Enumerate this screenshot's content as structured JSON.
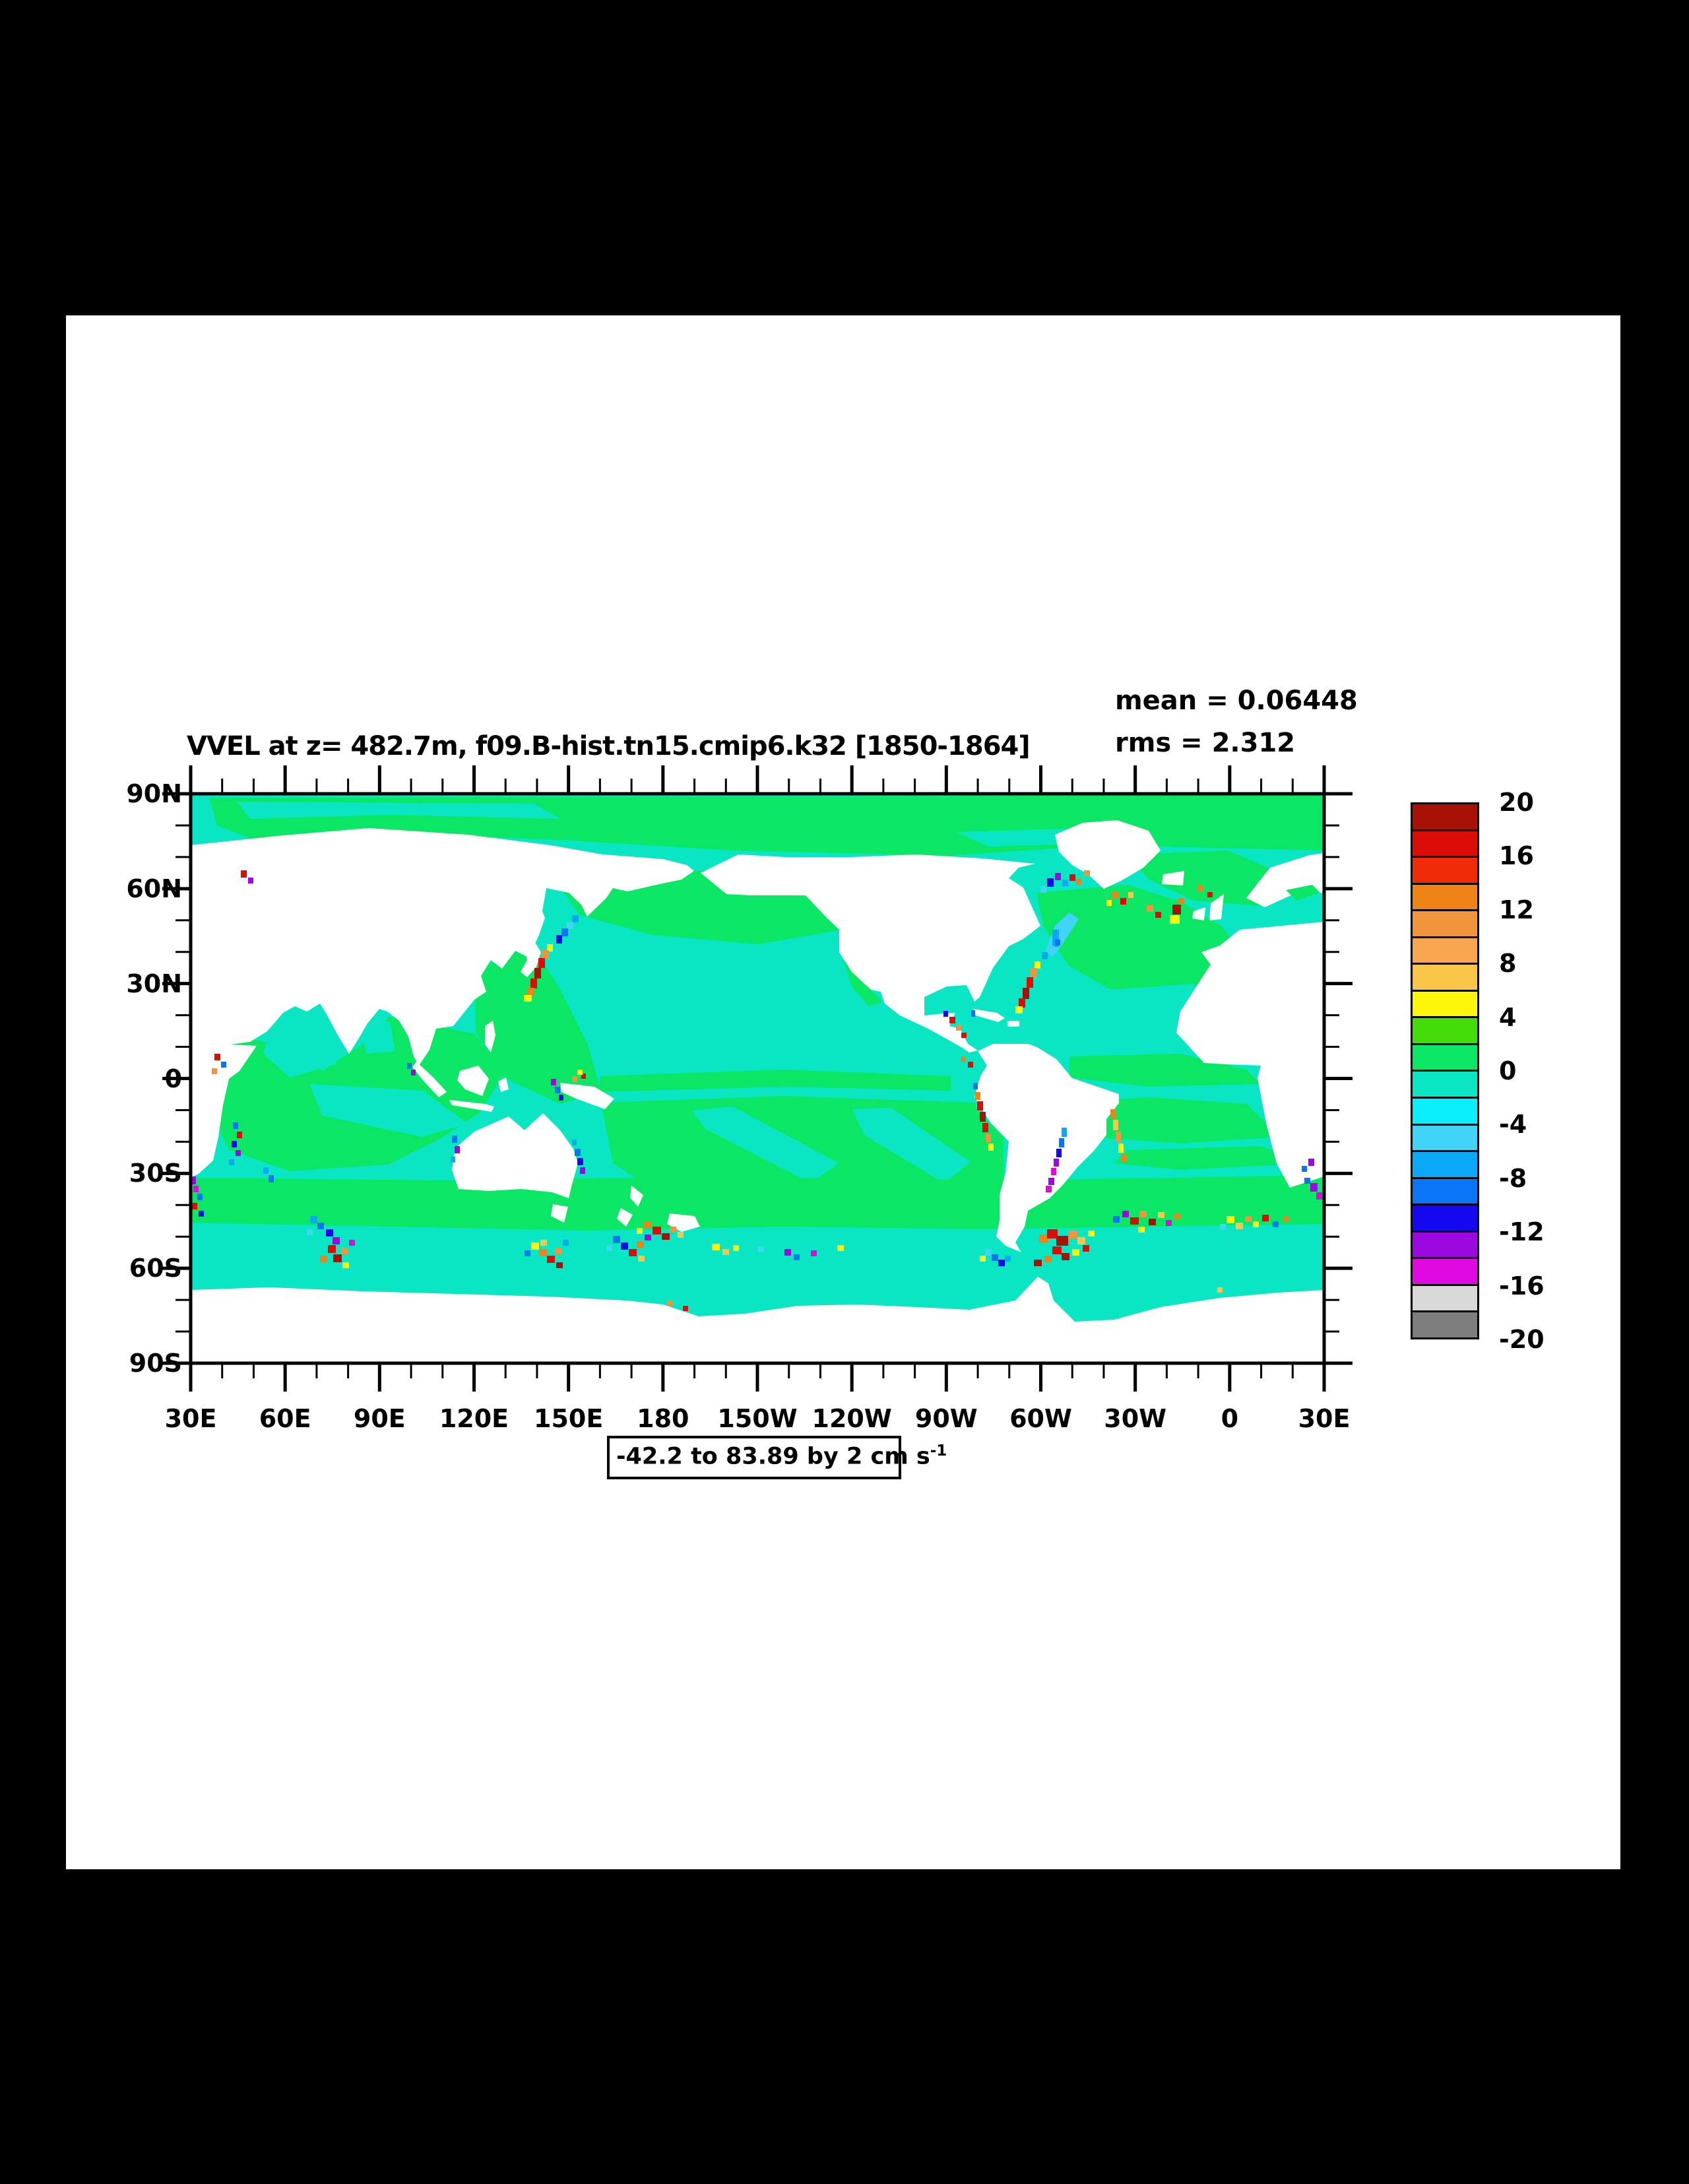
{
  "header": {
    "title": "VVEL at z= 482.7m, f09.B-hist.tn15.cmip6.k32 [1850-1864]",
    "mean_label": "mean = 0.06448",
    "rms_label": "rms = 2.312"
  },
  "caption": {
    "text": "-42.2 to 83.89 by 2 cm s",
    "superscript": "-1"
  },
  "axes": {
    "x_tick_labels": [
      "30E",
      "60E",
      "90E",
      "120E",
      "150E",
      "180",
      "150W",
      "120W",
      "90W",
      "60W",
      "30W",
      "0",
      "30E"
    ],
    "y_tick_labels": [
      "90N",
      "60N",
      "30N",
      "0",
      "30S",
      "60S",
      "90S"
    ]
  },
  "colorbar": {
    "tick_labels": [
      "20",
      "16",
      "12",
      "8",
      "4",
      "0",
      "-4",
      "-8",
      "-12",
      "-16",
      "-20"
    ],
    "cell_colors_top_to_bottom": [
      "#a81206",
      "#db0d06",
      "#f02b07",
      "#ee8418",
      "#f1953d",
      "#f7a74f",
      "#f9c649",
      "#fbf60a",
      "#44dc09",
      "#0be765",
      "#0ae6c3",
      "#0aeffb",
      "#41d4f8",
      "#0ba8f8",
      "#0a75f5",
      "#1507f0",
      "#9c09e0",
      "#e00ae0",
      "#d9d9d9",
      "#7e7e7e"
    ]
  },
  "chart_data": {
    "type": "heatmap",
    "title": "VVEL at z= 482.7m, f09.B-hist.tn15.cmip6.k32 [1850-1864]",
    "variable": "VVEL",
    "depth_m": 482.7,
    "case_id": "f09.B-hist.tn15.cmip6.k32",
    "period": "1850-1864",
    "units": "cm s-1",
    "statistics": {
      "mean": 0.06448,
      "rms": 2.312
    },
    "field_range": {
      "min": -42.2,
      "max": 83.89,
      "contour_interval": 2
    },
    "contour_levels": [
      -20,
      -18,
      -16,
      -14,
      -12,
      -10,
      -8,
      -6,
      -4,
      -2,
      0,
      2,
      4,
      6,
      8,
      10,
      12,
      14,
      16,
      18,
      20
    ],
    "colorbar_labeled_levels": [
      20,
      16,
      12,
      8,
      4,
      0,
      -4,
      -8,
      -12,
      -16,
      -20
    ],
    "palette_top_to_bottom": [
      "#a81206",
      "#db0d06",
      "#f02b07",
      "#ee8418",
      "#f1953d",
      "#f7a74f",
      "#f9c649",
      "#fbf60a",
      "#44dc09",
      "#0be765",
      "#0ae6c3",
      "#0aeffb",
      "#41d4f8",
      "#0ba8f8",
      "#0a75f5",
      "#1507f0",
      "#9c09e0",
      "#e00ae0",
      "#d9d9d9",
      "#7e7e7e"
    ],
    "legend_position": "right",
    "x_axis": {
      "tick_labels": [
        "30E",
        "60E",
        "90E",
        "120E",
        "150E",
        "180",
        "150W",
        "120W",
        "90W",
        "60W",
        "30W",
        "0",
        "30E"
      ],
      "major_tick_interval_deg": 30,
      "minor_tick_interval_deg": 10,
      "extent": "30E eastward around the globe to 30E"
    },
    "y_axis": {
      "tick_labels": [
        "90N",
        "60N",
        "30N",
        "0",
        "30S",
        "60S",
        "90S"
      ],
      "major_tick_interval_deg": 30,
      "minor_tick_interval_deg": 10,
      "extent": "90S to 90N"
    },
    "land_mask_color": "#ffffff",
    "dominant_field": "Ocean interior mostly -2 to +2 cm/s: green (0 to 2) and turquoise (-2 to 0)",
    "notable_features": [
      "Kuroshio: red/orange upwelling streak along Japan with blue Oyashio band to the northeast",
      "Gulf Stream: red streak along US east coast; light-blue patch near Grand Banks",
      "Labrador Sea / Irminger Sea / Norwegian Sea: mixed red, orange, blue, purple spots",
      "Peru coast red streak and Panama bight spots",
      "Brazil Current orange streak and strong red Brazil-Malvinas confluence cluster",
      "Southern Ocean eddy band near 45-60S: colorful clusters at Agulhas/Crozet-Kerguelen, south of Australia, Tasman/Macquarie, southeast of New Zealand, Drake Passage, Scotia Sea and Indian sector",
      "Antarctica and all land masked white"
    ]
  }
}
